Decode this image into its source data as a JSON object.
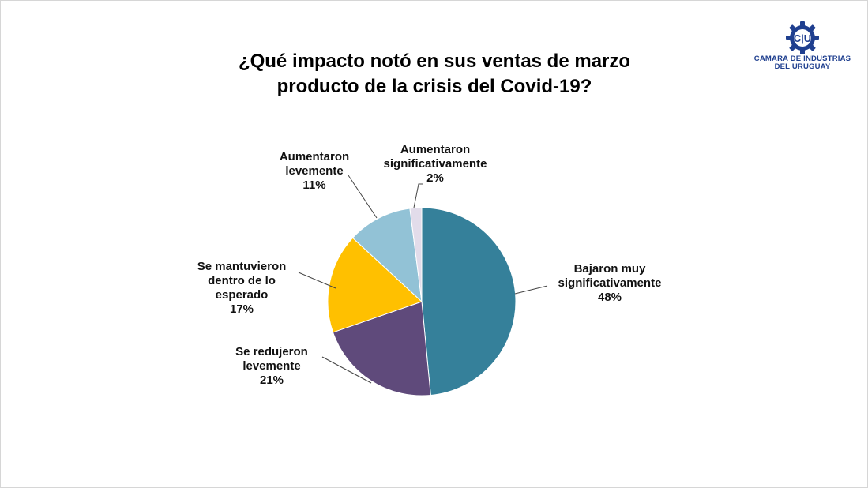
{
  "title": {
    "line1": "¿Qué impacto notó en sus ventas de marzo",
    "line2": "producto de la crisis del Covid-19?"
  },
  "logo": {
    "icon": "ciu-gear-logo",
    "line1": "CAMARA DE INDUSTRIAS",
    "line2": "DEL URUGUAY",
    "color": "#1f3f8f"
  },
  "chart_data": {
    "type": "pie",
    "title": "¿Qué impacto notó en sus ventas de marzo producto de la crisis del Covid-19?",
    "slices": [
      {
        "label_lines": [
          "Bajaron muy",
          "significativamente"
        ],
        "pct_label": "48%",
        "value": 48,
        "color": "#35809a"
      },
      {
        "label_lines": [
          "Se redujeron",
          "levemente"
        ],
        "pct_label": "21%",
        "value": 21,
        "color": "#5f4a7b"
      },
      {
        "label_lines": [
          "Se mantuvieron",
          "dentro de lo",
          "esperado"
        ],
        "pct_label": "17%",
        "value": 17,
        "color": "#ffc000"
      },
      {
        "label_lines": [
          "Aumentaron",
          "levemente"
        ],
        "pct_label": "11%",
        "value": 11,
        "color": "#92c2d6"
      },
      {
        "label_lines": [
          "Aumentaron",
          "significativamente"
        ],
        "pct_label": "2%",
        "value": 2,
        "color": "#e2dcea"
      }
    ]
  }
}
